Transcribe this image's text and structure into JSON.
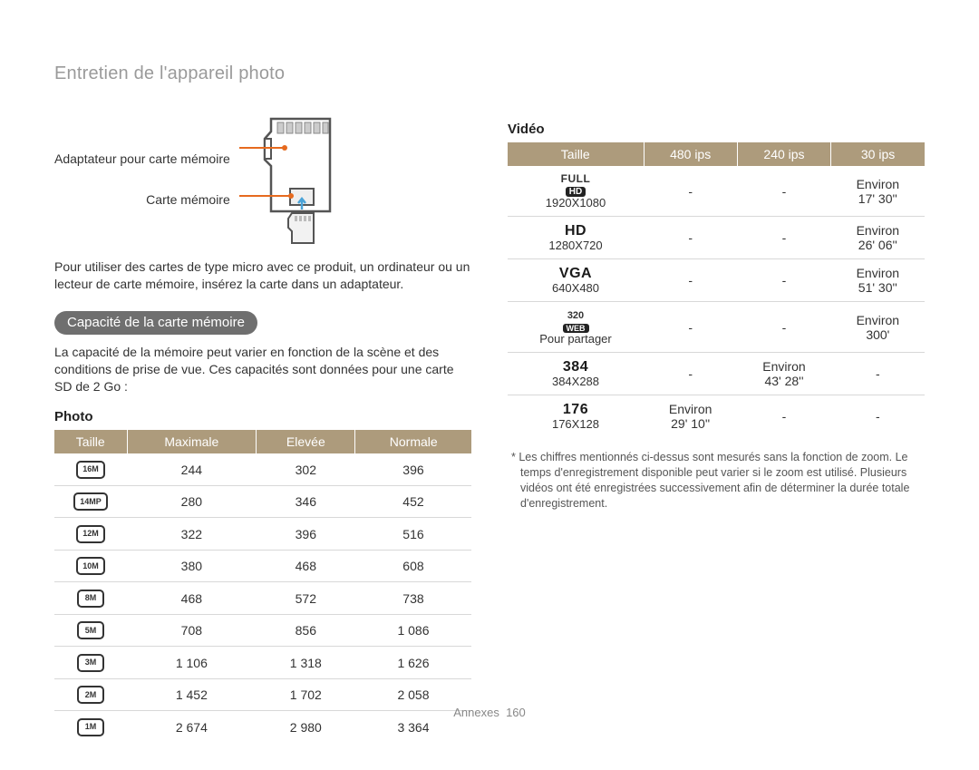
{
  "breadcrumb": "Entretien de l'appareil photo",
  "sd": {
    "adapter_label": "Adaptateur pour carte mémoire",
    "card_label": "Carte mémoire"
  },
  "intro_text": "Pour utiliser des cartes de type micro avec ce produit, un ordinateur ou un lecteur de carte mémoire, insérez la carte dans un adaptateur.",
  "capacity_pill": "Capacité de la carte mémoire",
  "capacity_text": "La capacité de la mémoire peut varier en fonction de la scène et des conditions de prise de vue. Ces capacités sont données pour une carte SD de 2 Go :",
  "photo": {
    "title": "Photo",
    "headers": [
      "Taille",
      "Maximale",
      "Elevée",
      "Normale"
    ],
    "rows": [
      {
        "icon": "16M",
        "vals": [
          "244",
          "302",
          "396"
        ]
      },
      {
        "icon": "14MP",
        "vals": [
          "280",
          "346",
          "452"
        ]
      },
      {
        "icon": "12M",
        "vals": [
          "322",
          "396",
          "516"
        ]
      },
      {
        "icon": "10M",
        "vals": [
          "380",
          "468",
          "608"
        ]
      },
      {
        "icon": "8M",
        "vals": [
          "468",
          "572",
          "738"
        ]
      },
      {
        "icon": "5M",
        "vals": [
          "708",
          "856",
          "1 086"
        ]
      },
      {
        "icon": "3M",
        "vals": [
          "1 106",
          "1 318",
          "1 626"
        ]
      },
      {
        "icon": "2M",
        "vals": [
          "1 452",
          "1 702",
          "2 058"
        ]
      },
      {
        "icon": "1M",
        "vals": [
          "2 674",
          "2 980",
          "3 364"
        ]
      }
    ]
  },
  "video": {
    "title": "Vidéo",
    "headers": [
      "Taille",
      "480 ips",
      "240 ips",
      "30 ips"
    ],
    "rows": [
      {
        "icon_type": "fullhd",
        "sub": "1920X1080",
        "vals": [
          "-",
          "-",
          "Environ 17' 30''"
        ]
      },
      {
        "icon_type": "text",
        "icon": "HD",
        "sub": "1280X720",
        "vals": [
          "-",
          "-",
          "Environ 26' 06''"
        ]
      },
      {
        "icon_type": "text",
        "icon": "VGA",
        "sub": "640X480",
        "vals": [
          "-",
          "-",
          "Environ 51' 30''"
        ]
      },
      {
        "icon_type": "web320",
        "sub": "Pour partager",
        "vals": [
          "-",
          "-",
          "Environ 300'"
        ]
      },
      {
        "icon_type": "text",
        "icon": "384",
        "sub": "384X288",
        "vals": [
          "-",
          "Environ 43' 28''",
          "-"
        ]
      },
      {
        "icon_type": "text",
        "icon": "176",
        "sub": "176X128",
        "vals": [
          "Environ 29' 10''",
          "-",
          "-"
        ]
      }
    ],
    "footnote": "* Les chiffres mentionnés ci-dessus sont mesurés sans la fonction de zoom. Le temps d'enregistrement disponible peut varier si le zoom est utilisé. Plusieurs vidéos ont été enregistrées successivement afin de déterminer la durée totale d'enregistrement."
  },
  "footer": {
    "section": "Annexes",
    "page": "160"
  },
  "colors": {
    "header_bg": "#ad9b7c",
    "header_fg": "#ffffff",
    "row_border": "#d8d8d8",
    "pill_bg": "#6f6f6f",
    "accent_line": "#e66a1f"
  }
}
